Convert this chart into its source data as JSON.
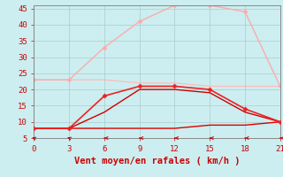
{
  "xlabel": "Vent moyen/en rafales ( km/h )",
  "background_color": "#cceef0",
  "grid_color": "#aacccc",
  "x_values": [
    0,
    3,
    6,
    9,
    12,
    15,
    18,
    21
  ],
  "ylim": [
    5,
    46
  ],
  "xlim": [
    0,
    21
  ],
  "yticks": [
    5,
    10,
    15,
    20,
    25,
    30,
    35,
    40,
    45
  ],
  "xticks": [
    0,
    3,
    6,
    9,
    12,
    15,
    18,
    21
  ],
  "lines": [
    {
      "y": [
        23,
        23,
        33,
        41,
        46,
        46,
        44,
        21
      ],
      "color": "#ffaaaa",
      "marker": "D",
      "markersize": 2.5,
      "linewidth": 1.0,
      "zorder": 2
    },
    {
      "y": [
        23,
        23,
        23,
        22,
        22,
        21,
        21,
        21
      ],
      "color": "#ffbbbb",
      "marker": null,
      "markersize": 0,
      "linewidth": 0.9,
      "zorder": 1
    },
    {
      "y": [
        8,
        8,
        18,
        21,
        21,
        20,
        14,
        10
      ],
      "color": "#ee2222",
      "marker": "D",
      "markersize": 2.5,
      "linewidth": 1.2,
      "zorder": 4
    },
    {
      "y": [
        8,
        8,
        13,
        20,
        20,
        19,
        13,
        10
      ],
      "color": "#cc0000",
      "marker": null,
      "markersize": 0,
      "linewidth": 1.0,
      "zorder": 3
    },
    {
      "y": [
        8,
        8,
        8,
        8,
        8,
        9,
        9,
        10
      ],
      "color": "#dd0000",
      "marker": null,
      "markersize": 0,
      "linewidth": 1.0,
      "zorder": 3
    }
  ],
  "xlabel_color": "#cc0000",
  "tick_color": "#cc0000",
  "tick_fontsize": 6.5,
  "xlabel_fontsize": 7.5,
  "arrow_angles": [
    225,
    225,
    270,
    270,
    270,
    270,
    270,
    270
  ]
}
